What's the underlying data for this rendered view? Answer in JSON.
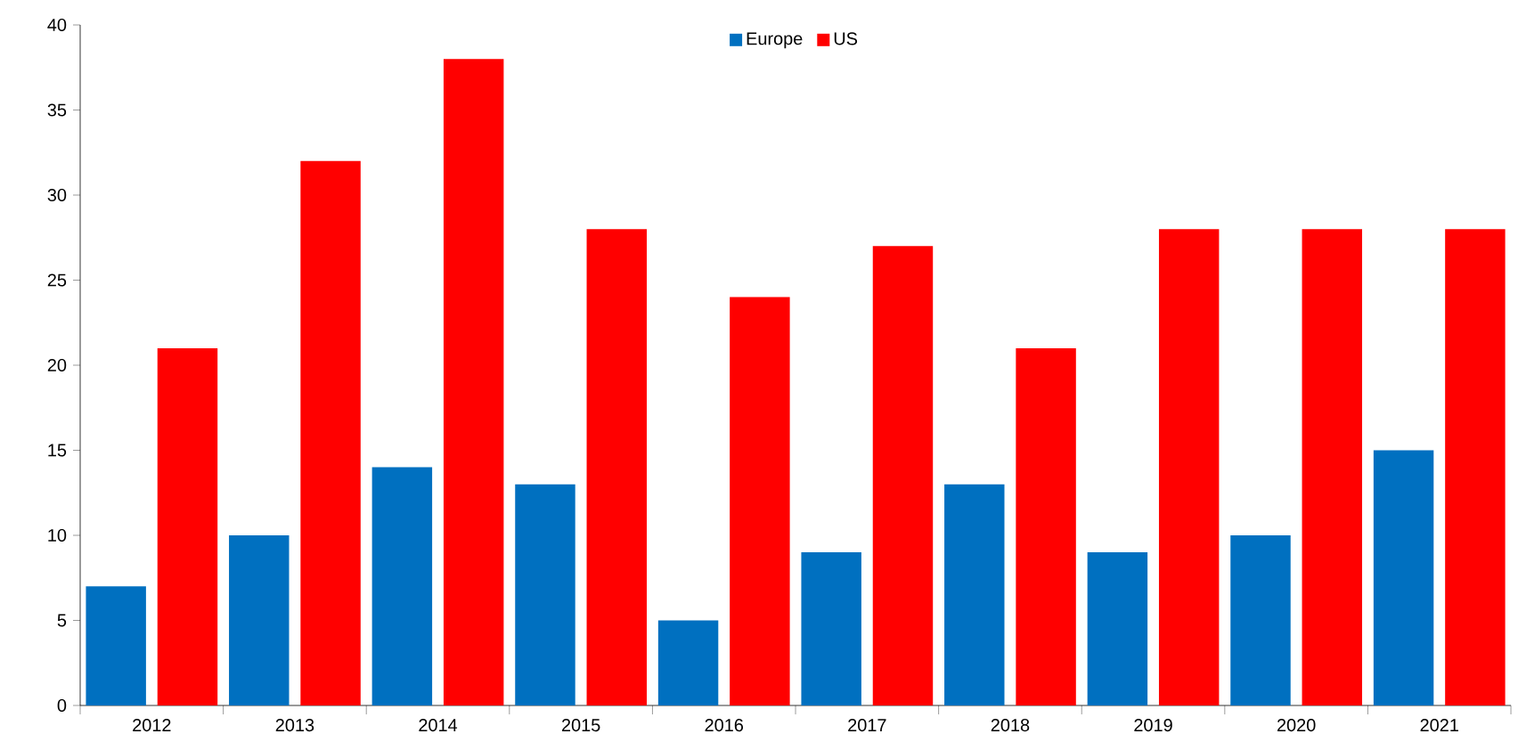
{
  "chart_data": {
    "type": "bar",
    "categories": [
      "2012",
      "2013",
      "2014",
      "2015",
      "2016",
      "2017",
      "2018",
      "2019",
      "2020",
      "2021"
    ],
    "series": [
      {
        "name": "Europe",
        "color": "#0070c0",
        "values": [
          7,
          10,
          14,
          13,
          5,
          9,
          13,
          9,
          10,
          15
        ]
      },
      {
        "name": "US",
        "color": "#ff0000",
        "values": [
          21,
          32,
          38,
          28,
          24,
          27,
          21,
          28,
          28,
          28
        ]
      }
    ],
    "ylim": [
      0,
      40
    ],
    "yticks": [
      0,
      5,
      10,
      15,
      20,
      25,
      30,
      35,
      40
    ],
    "legend": "top",
    "grid": false
  }
}
